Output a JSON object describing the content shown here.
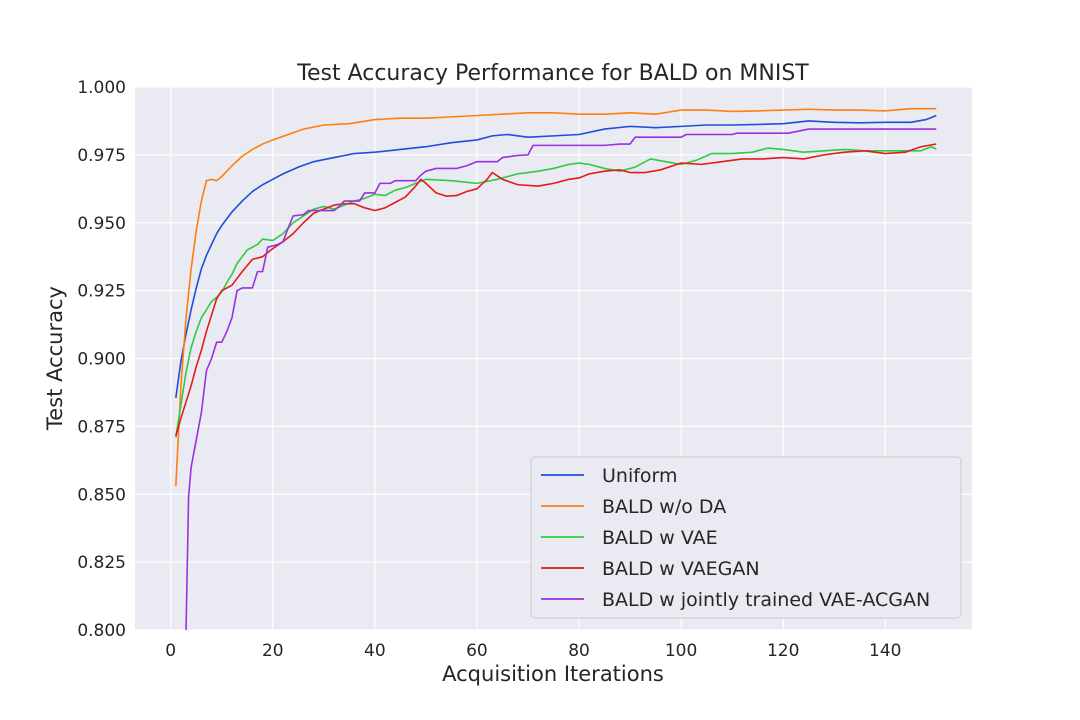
{
  "chart_data": {
    "type": "line",
    "title": "Test Accuracy Performance for BALD on MNIST",
    "xlabel": "Acquisition Iterations",
    "ylabel": "Test Accuracy",
    "xlim": [
      -7,
      157
    ],
    "ylim": [
      0.8,
      1.0
    ],
    "xticks": [
      0,
      20,
      40,
      60,
      80,
      100,
      120,
      140
    ],
    "yticks": [
      0.8,
      0.825,
      0.85,
      0.875,
      0.9,
      0.925,
      0.95,
      0.975,
      1.0
    ],
    "xtick_labels": [
      "0",
      "20",
      "40",
      "60",
      "80",
      "100",
      "120",
      "140"
    ],
    "ytick_labels": [
      "0.800",
      "0.825",
      "0.850",
      "0.875",
      "0.900",
      "0.925",
      "0.950",
      "0.975",
      "1.000"
    ],
    "grid": true,
    "legend_position": "lower-right",
    "background": "#eaeaf2",
    "series": [
      {
        "name": "Uniform",
        "color": "#1f4ed8",
        "points": [
          [
            1,
            0.8855
          ],
          [
            2,
            0.899
          ],
          [
            3,
            0.909
          ],
          [
            4,
            0.918
          ],
          [
            5,
            0.926
          ],
          [
            6,
            0.933
          ],
          [
            7,
            0.938
          ],
          [
            8,
            0.942
          ],
          [
            9,
            0.946
          ],
          [
            10,
            0.949
          ],
          [
            12,
            0.954
          ],
          [
            14,
            0.958
          ],
          [
            16,
            0.9615
          ],
          [
            18,
            0.964
          ],
          [
            20,
            0.966
          ],
          [
            22,
            0.968
          ],
          [
            25,
            0.9705
          ],
          [
            28,
            0.9725
          ],
          [
            32,
            0.974
          ],
          [
            36,
            0.9755
          ],
          [
            40,
            0.976
          ],
          [
            45,
            0.977
          ],
          [
            50,
            0.978
          ],
          [
            55,
            0.9795
          ],
          [
            60,
            0.9805
          ],
          [
            63,
            0.982
          ],
          [
            66,
            0.9825
          ],
          [
            70,
            0.9815
          ],
          [
            75,
            0.982
          ],
          [
            80,
            0.9825
          ],
          [
            85,
            0.9845
          ],
          [
            90,
            0.9855
          ],
          [
            95,
            0.985
          ],
          [
            100,
            0.9855
          ],
          [
            105,
            0.986
          ],
          [
            110,
            0.986
          ],
          [
            115,
            0.9862
          ],
          [
            120,
            0.9865
          ],
          [
            125,
            0.9875
          ],
          [
            130,
            0.987
          ],
          [
            135,
            0.9868
          ],
          [
            140,
            0.987
          ],
          [
            145,
            0.987
          ],
          [
            148,
            0.988
          ],
          [
            150,
            0.9895
          ]
        ]
      },
      {
        "name": "BALD w/o DA",
        "color": "#ff7f0e",
        "points": [
          [
            1,
            0.853
          ],
          [
            2,
            0.89
          ],
          [
            3,
            0.915
          ],
          [
            4,
            0.933
          ],
          [
            5,
            0.947
          ],
          [
            6,
            0.958
          ],
          [
            7,
            0.9655
          ],
          [
            8,
            0.966
          ],
          [
            9,
            0.9655
          ],
          [
            10,
            0.967
          ],
          [
            12,
            0.971
          ],
          [
            14,
            0.9745
          ],
          [
            16,
            0.977
          ],
          [
            18,
            0.979
          ],
          [
            20,
            0.9805
          ],
          [
            23,
            0.9825
          ],
          [
            26,
            0.9845
          ],
          [
            30,
            0.986
          ],
          [
            35,
            0.9865
          ],
          [
            40,
            0.988
          ],
          [
            45,
            0.9885
          ],
          [
            50,
            0.9885
          ],
          [
            55,
            0.989
          ],
          [
            60,
            0.9895
          ],
          [
            65,
            0.99
          ],
          [
            70,
            0.9905
          ],
          [
            75,
            0.9905
          ],
          [
            80,
            0.99
          ],
          [
            85,
            0.99
          ],
          [
            90,
            0.9905
          ],
          [
            95,
            0.99
          ],
          [
            100,
            0.9915
          ],
          [
            105,
            0.9915
          ],
          [
            110,
            0.991
          ],
          [
            115,
            0.9912
          ],
          [
            120,
            0.9915
          ],
          [
            125,
            0.9918
          ],
          [
            130,
            0.9915
          ],
          [
            135,
            0.9915
          ],
          [
            140,
            0.9912
          ],
          [
            145,
            0.992
          ],
          [
            150,
            0.992
          ]
        ]
      },
      {
        "name": "BALD w VAE",
        "color": "#2ecc40",
        "points": [
          [
            1,
            0.871
          ],
          [
            2,
            0.883
          ],
          [
            3,
            0.895
          ],
          [
            4,
            0.904
          ],
          [
            5,
            0.91
          ],
          [
            6,
            0.915
          ],
          [
            7,
            0.918
          ],
          [
            8,
            0.921
          ],
          [
            9,
            0.9225
          ],
          [
            10,
            0.9245
          ],
          [
            11,
            0.928
          ],
          [
            12,
            0.931
          ],
          [
            13,
            0.935
          ],
          [
            15,
            0.94
          ],
          [
            17,
            0.942
          ],
          [
            18,
            0.944
          ],
          [
            20,
            0.9435
          ],
          [
            22,
            0.946
          ],
          [
            24,
            0.95
          ],
          [
            26,
            0.9525
          ],
          [
            28,
            0.955
          ],
          [
            30,
            0.956
          ],
          [
            32,
            0.955
          ],
          [
            34,
            0.9565
          ],
          [
            36,
            0.958
          ],
          [
            38,
            0.959
          ],
          [
            40,
            0.9605
          ],
          [
            42,
            0.96
          ],
          [
            44,
            0.962
          ],
          [
            46,
            0.963
          ],
          [
            48,
            0.9645
          ],
          [
            50,
            0.966
          ],
          [
            55,
            0.9655
          ],
          [
            60,
            0.9645
          ],
          [
            64,
            0.966
          ],
          [
            68,
            0.968
          ],
          [
            72,
            0.969
          ],
          [
            75,
            0.97
          ],
          [
            78,
            0.9715
          ],
          [
            80,
            0.972
          ],
          [
            82,
            0.9715
          ],
          [
            85,
            0.97
          ],
          [
            88,
            0.969
          ],
          [
            91,
            0.9705
          ],
          [
            94,
            0.9735
          ],
          [
            97,
            0.9725
          ],
          [
            100,
            0.9715
          ],
          [
            103,
            0.973
          ],
          [
            106,
            0.9755
          ],
          [
            110,
            0.9755
          ],
          [
            114,
            0.976
          ],
          [
            117,
            0.9775
          ],
          [
            120,
            0.977
          ],
          [
            124,
            0.976
          ],
          [
            128,
            0.9765
          ],
          [
            132,
            0.977
          ],
          [
            136,
            0.9765
          ],
          [
            140,
            0.9765
          ],
          [
            144,
            0.9765
          ],
          [
            147,
            0.9765
          ],
          [
            149,
            0.978
          ],
          [
            150,
            0.9772
          ]
        ]
      },
      {
        "name": "BALD w VAEGAN",
        "color": "#e41a1c",
        "points": [
          [
            1,
            0.8715
          ],
          [
            2,
            0.878
          ],
          [
            3,
            0.884
          ],
          [
            4,
            0.89
          ],
          [
            5,
            0.897
          ],
          [
            6,
            0.903
          ],
          [
            7,
            0.91
          ],
          [
            8,
            0.916
          ],
          [
            9,
            0.922
          ],
          [
            10,
            0.925
          ],
          [
            11,
            0.926
          ],
          [
            12,
            0.927
          ],
          [
            14,
            0.932
          ],
          [
            16,
            0.9365
          ],
          [
            18,
            0.9375
          ],
          [
            20,
            0.9405
          ],
          [
            22,
            0.943
          ],
          [
            24,
            0.946
          ],
          [
            26,
            0.95
          ],
          [
            28,
            0.9535
          ],
          [
            30,
            0.955
          ],
          [
            32,
            0.9565
          ],
          [
            34,
            0.957
          ],
          [
            36,
            0.957
          ],
          [
            38,
            0.9555
          ],
          [
            40,
            0.9545
          ],
          [
            42,
            0.9555
          ],
          [
            44,
            0.9575
          ],
          [
            46,
            0.9595
          ],
          [
            48,
            0.9635
          ],
          [
            49,
            0.966
          ],
          [
            50,
            0.9645
          ],
          [
            52,
            0.961
          ],
          [
            54,
            0.9598
          ],
          [
            56,
            0.96
          ],
          [
            58,
            0.9615
          ],
          [
            60,
            0.9625
          ],
          [
            62,
            0.966
          ],
          [
            63,
            0.9685
          ],
          [
            65,
            0.966
          ],
          [
            68,
            0.964
          ],
          [
            72,
            0.9635
          ],
          [
            75,
            0.9645
          ],
          [
            78,
            0.966
          ],
          [
            80,
            0.9665
          ],
          [
            82,
            0.968
          ],
          [
            85,
            0.969
          ],
          [
            88,
            0.9695
          ],
          [
            90,
            0.9685
          ],
          [
            93,
            0.9685
          ],
          [
            96,
            0.9695
          ],
          [
            100,
            0.972
          ],
          [
            104,
            0.9715
          ],
          [
            108,
            0.9725
          ],
          [
            112,
            0.9735
          ],
          [
            116,
            0.9735
          ],
          [
            120,
            0.974
          ],
          [
            124,
            0.9735
          ],
          [
            128,
            0.975
          ],
          [
            132,
            0.976
          ],
          [
            136,
            0.9765
          ],
          [
            140,
            0.9755
          ],
          [
            144,
            0.976
          ],
          [
            147,
            0.978
          ],
          [
            150,
            0.979
          ]
        ]
      },
      {
        "name": "BALD w jointly trained VAE-ACGAN",
        "color": "#9b30e0",
        "points": [
          [
            3,
            0.8
          ],
          [
            3.5,
            0.849
          ],
          [
            4,
            0.86
          ],
          [
            5,
            0.87
          ],
          [
            6,
            0.88
          ],
          [
            7,
            0.8955
          ],
          [
            8,
            0.9
          ],
          [
            9,
            0.906
          ],
          [
            10,
            0.906
          ],
          [
            11,
            0.91
          ],
          [
            12,
            0.915
          ],
          [
            13,
            0.925
          ],
          [
            14,
            0.926
          ],
          [
            16,
            0.926
          ],
          [
            17,
            0.932
          ],
          [
            18,
            0.932
          ],
          [
            19,
            0.941
          ],
          [
            21,
            0.942
          ],
          [
            22,
            0.943
          ],
          [
            23,
            0.948
          ],
          [
            24,
            0.9525
          ],
          [
            26,
            0.953
          ],
          [
            27,
            0.9545
          ],
          [
            32,
            0.9545
          ],
          [
            33,
            0.956
          ],
          [
            34,
            0.958
          ],
          [
            37,
            0.958
          ],
          [
            38,
            0.961
          ],
          [
            40,
            0.961
          ],
          [
            41,
            0.9645
          ],
          [
            43,
            0.9645
          ],
          [
            44,
            0.9655
          ],
          [
            48,
            0.9655
          ],
          [
            49,
            0.9675
          ],
          [
            50,
            0.969
          ],
          [
            52,
            0.97
          ],
          [
            56,
            0.97
          ],
          [
            58,
            0.971
          ],
          [
            60,
            0.9725
          ],
          [
            64,
            0.9725
          ],
          [
            65,
            0.974
          ],
          [
            68,
            0.9748
          ],
          [
            70,
            0.975
          ],
          [
            71,
            0.9785
          ],
          [
            75,
            0.9785
          ],
          [
            80,
            0.9785
          ],
          [
            85,
            0.9785
          ],
          [
            88,
            0.979
          ],
          [
            90,
            0.979
          ],
          [
            91,
            0.9815
          ],
          [
            95,
            0.9815
          ],
          [
            100,
            0.9815
          ],
          [
            101,
            0.9825
          ],
          [
            110,
            0.9825
          ],
          [
            111,
            0.983
          ],
          [
            120,
            0.983
          ],
          [
            121,
            0.983
          ],
          [
            125,
            0.9845
          ],
          [
            130,
            0.9845
          ],
          [
            140,
            0.9845
          ],
          [
            150,
            0.9845
          ]
        ]
      }
    ]
  }
}
